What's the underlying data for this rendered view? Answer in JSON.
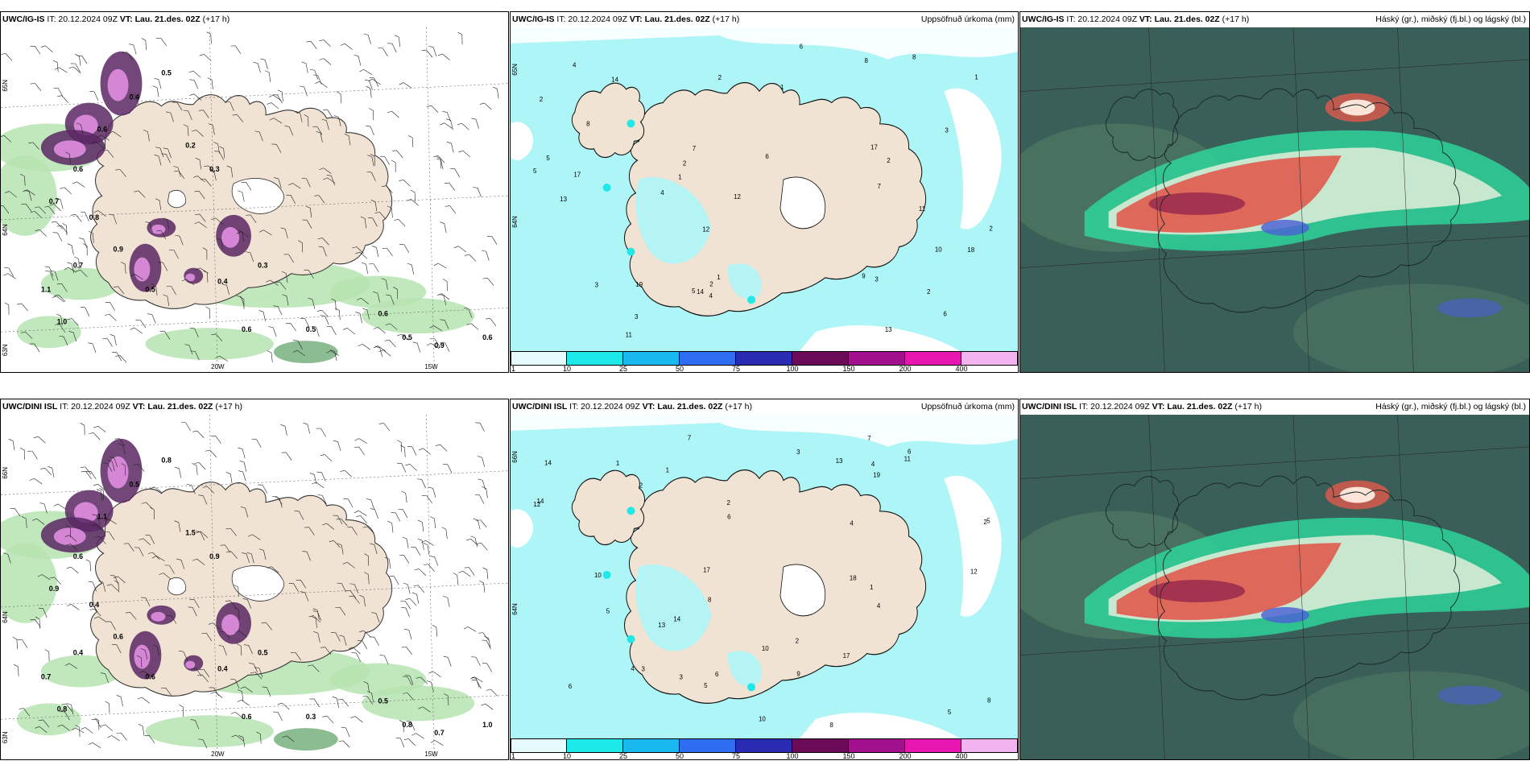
{
  "panels": [
    {
      "id": "a",
      "model_prefix": "UWC/IG-IS",
      "it_label": "IT: 20.12.2024 09Z",
      "vt_label": "VT: Lau. 21.des. 02Z",
      "lead_label": "(+17 h)",
      "right_label": "",
      "type": "wind",
      "lat_labels": [
        "65N",
        "64N",
        "63N"
      ],
      "lon_labels": [
        "20W",
        "15W"
      ],
      "values": [
        "0.5",
        "0.4",
        "0.6",
        "0.6",
        "0.7",
        "0.8",
        "0.9",
        "1.1",
        "1.0",
        "0.3",
        "0.4",
        "0.6",
        "0.5",
        "0.6",
        "0.5",
        "0.9",
        "0.6",
        "0.5",
        "0.7",
        "0.2",
        "0.3"
      ]
    },
    {
      "id": "b",
      "model_prefix": "UWC/IG-IS",
      "it_label": "IT: 20.12.2024 09Z",
      "vt_label": "VT: Lau. 21.des. 02Z",
      "lead_label": "(+17 h)",
      "right_label": "Uppsöfnuð úrkoma (mm)",
      "type": "precip",
      "lat_labels": [
        "65N",
        "64N"
      ],
      "values": [
        "8",
        "2",
        "1",
        "2",
        "8",
        "3",
        "11",
        "14",
        "17",
        "12",
        "13",
        "9",
        "7",
        "6",
        "5",
        "4",
        "3",
        "2",
        "1",
        "17",
        "18",
        "19",
        "10",
        "11",
        "4",
        "6",
        "3",
        "12",
        "14",
        "13",
        "2",
        "2",
        "1",
        "4",
        "5",
        "3",
        "2",
        "1",
        "8",
        "7",
        "6",
        "5",
        "2"
      ],
      "colorbar": {
        "ticks": [
          "1",
          "10",
          "25",
          "50",
          "75",
          "100",
          "150",
          "200",
          "400"
        ],
        "colors": [
          "#e6fcfc",
          "#1de9e9",
          "#19b8ee",
          "#2f6df0",
          "#2a2bb3",
          "#6b0b58",
          "#a3108e",
          "#e816b0",
          "#f2b3ee"
        ]
      }
    },
    {
      "id": "c",
      "model_prefix": "UWC/IG-IS",
      "it_label": "IT: 20.12.2024 09Z",
      "vt_label": "VT: Lau. 21.des. 02Z",
      "lead_label": "(+17 h)",
      "right_label": "Háský (gr.), miðský (fj.bl.) og lágský (bl.)",
      "type": "cloud"
    },
    {
      "id": "d",
      "model_prefix": "UWC/DINI ISL",
      "it_label": "IT: 20.12.2024 09Z",
      "vt_label": "VT: Lau. 21.des. 02Z",
      "lead_label": "(+17 h)",
      "right_label": "",
      "type": "wind",
      "lat_labels": [
        "66N",
        "64N",
        "63N"
      ],
      "lon_labels": [
        "20W",
        "15W"
      ],
      "values": [
        "0.8",
        "0.5",
        "1.1",
        "0.6",
        "0.9",
        "0.4",
        "0.6",
        "0.7",
        "0.8",
        "0.5",
        "0.4",
        "0.6",
        "0.3",
        "0.5",
        "0.8",
        "0.7",
        "1.0",
        "0.6",
        "0.4",
        "1.5",
        "0.9"
      ]
    },
    {
      "id": "e",
      "model_prefix": "UWC/DINI ISL",
      "it_label": "IT: 20.12.2024 09Z",
      "vt_label": "VT: Lau. 21.des. 02Z",
      "lead_label": "(+17 h)",
      "right_label": "Uppsöfnuð úrkoma (mm)",
      "type": "precip",
      "lat_labels": [
        "66N",
        "64N"
      ],
      "values": [
        "8",
        "8",
        "13",
        "14",
        "10",
        "6",
        "7",
        "4",
        "5",
        "6",
        "10",
        "12",
        "14",
        "13",
        "11",
        "17",
        "14",
        "9",
        "10",
        "12",
        "17",
        "18",
        "19",
        "2",
        "3",
        "4",
        "5",
        "6",
        "1",
        "2",
        "3",
        "4",
        "2",
        "1",
        "5",
        "4",
        "3",
        "2",
        "1",
        "7",
        "8",
        "6",
        "5"
      ],
      "colorbar": {
        "ticks": [
          "1",
          "10",
          "25",
          "50",
          "75",
          "100",
          "150",
          "200",
          "400"
        ],
        "colors": [
          "#e6fcfc",
          "#1de9e9",
          "#19b8ee",
          "#2f6df0",
          "#2a2bb3",
          "#6b0b58",
          "#a3108e",
          "#e816b0",
          "#f2b3ee"
        ]
      }
    },
    {
      "id": "f",
      "model_prefix": "UWC/DINI ISL",
      "it_label": "IT: 20.12.2024 09Z",
      "vt_label": "VT: Lau. 21.des. 02Z",
      "lead_label": "(+17 h)",
      "right_label": "Háský (gr.), miðský (fj.bl.) og lágský (bl.)",
      "type": "cloud"
    }
  ],
  "colors": {
    "land": "#f0e3d3",
    "sea_precip": "#aef5f7",
    "wind_purple": "#5a2763",
    "wind_magenta": "#e08ee0",
    "wind_green": "#b6e3b0",
    "cloud_dark": "#3a5e58",
    "cloud_teal": "#2fd29a",
    "cloud_red": "#e05a4c",
    "cloud_blue": "#4a5fd6"
  }
}
